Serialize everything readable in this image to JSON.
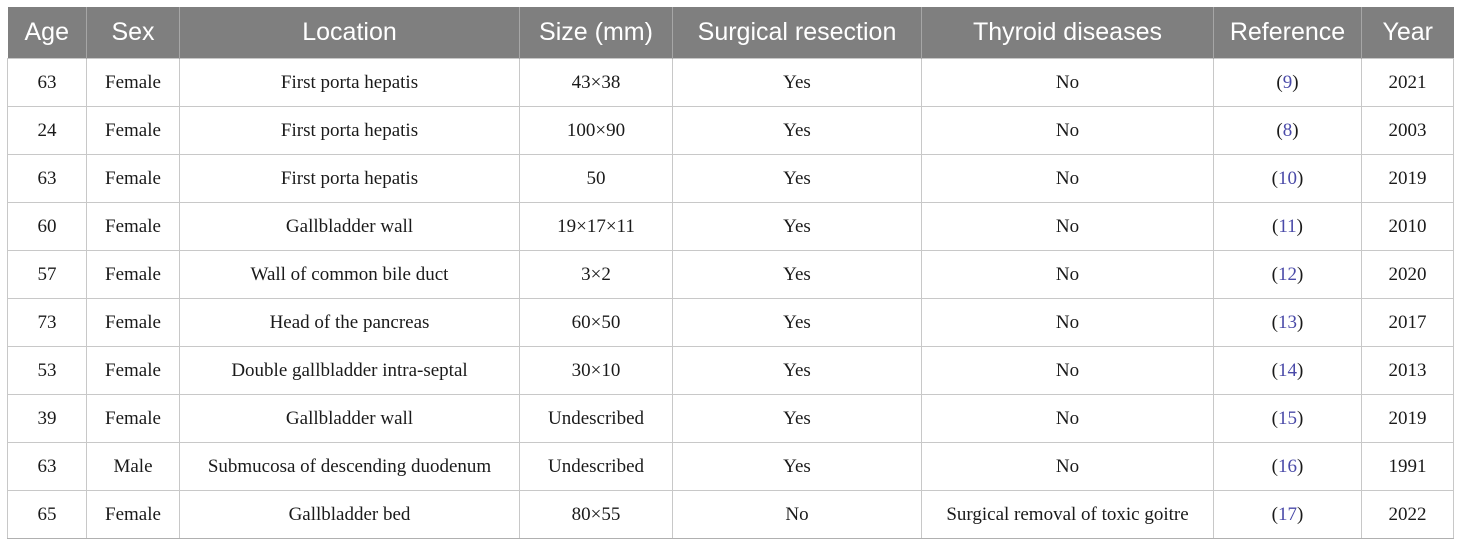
{
  "table": {
    "headers": [
      "Age",
      "Sex",
      "Location",
      "Size (mm)",
      "Surgical resection",
      "Thyroid diseases",
      "Reference",
      "Year"
    ],
    "rows": [
      {
        "age": "63",
        "sex": "Female",
        "location": "First porta hepatis",
        "size": "43×38",
        "resection": "Yes",
        "thyroid": "No",
        "ref": "9",
        "year": "2021"
      },
      {
        "age": "24",
        "sex": "Female",
        "location": "First porta hepatis",
        "size": "100×90",
        "resection": "Yes",
        "thyroid": "No",
        "ref": "8",
        "year": "2003"
      },
      {
        "age": "63",
        "sex": "Female",
        "location": "First porta hepatis",
        "size": "50",
        "resection": "Yes",
        "thyroid": "No",
        "ref": "10",
        "year": "2019"
      },
      {
        "age": "60",
        "sex": "Female",
        "location": "Gallbladder wall",
        "size": "19×17×11",
        "resection": "Yes",
        "thyroid": "No",
        "ref": "11",
        "year": "2010"
      },
      {
        "age": "57",
        "sex": "Female",
        "location": "Wall of common bile duct",
        "size": "3×2",
        "resection": "Yes",
        "thyroid": "No",
        "ref": "12",
        "year": "2020"
      },
      {
        "age": "73",
        "sex": "Female",
        "location": "Head of the pancreas",
        "size": "60×50",
        "resection": "Yes",
        "thyroid": "No",
        "ref": "13",
        "year": "2017"
      },
      {
        "age": "53",
        "sex": "Female",
        "location": "Double gallbladder intra-septal",
        "size": "30×10",
        "resection": "Yes",
        "thyroid": "No",
        "ref": "14",
        "year": "2013"
      },
      {
        "age": "39",
        "sex": "Female",
        "location": "Gallbladder wall",
        "size": "Undescribed",
        "resection": "Yes",
        "thyroid": "No",
        "ref": "15",
        "year": "2019"
      },
      {
        "age": "63",
        "sex": "Male",
        "location": "Submucosa of descending duodenum",
        "size": "Undescribed",
        "resection": "Yes",
        "thyroid": "No",
        "ref": "16",
        "year": "1991"
      },
      {
        "age": "65",
        "sex": "Female",
        "location": "Gallbladder bed",
        "size": "80×55",
        "resection": "No",
        "thyroid": "Surgical removal of toxic goitre",
        "ref": "17",
        "year": "2022"
      }
    ]
  },
  "colors": {
    "header_bg": "#7f7f7f",
    "header_text": "#ffffff",
    "reference_link": "#4a4aa8",
    "grid_line": "#c8c8c8"
  }
}
